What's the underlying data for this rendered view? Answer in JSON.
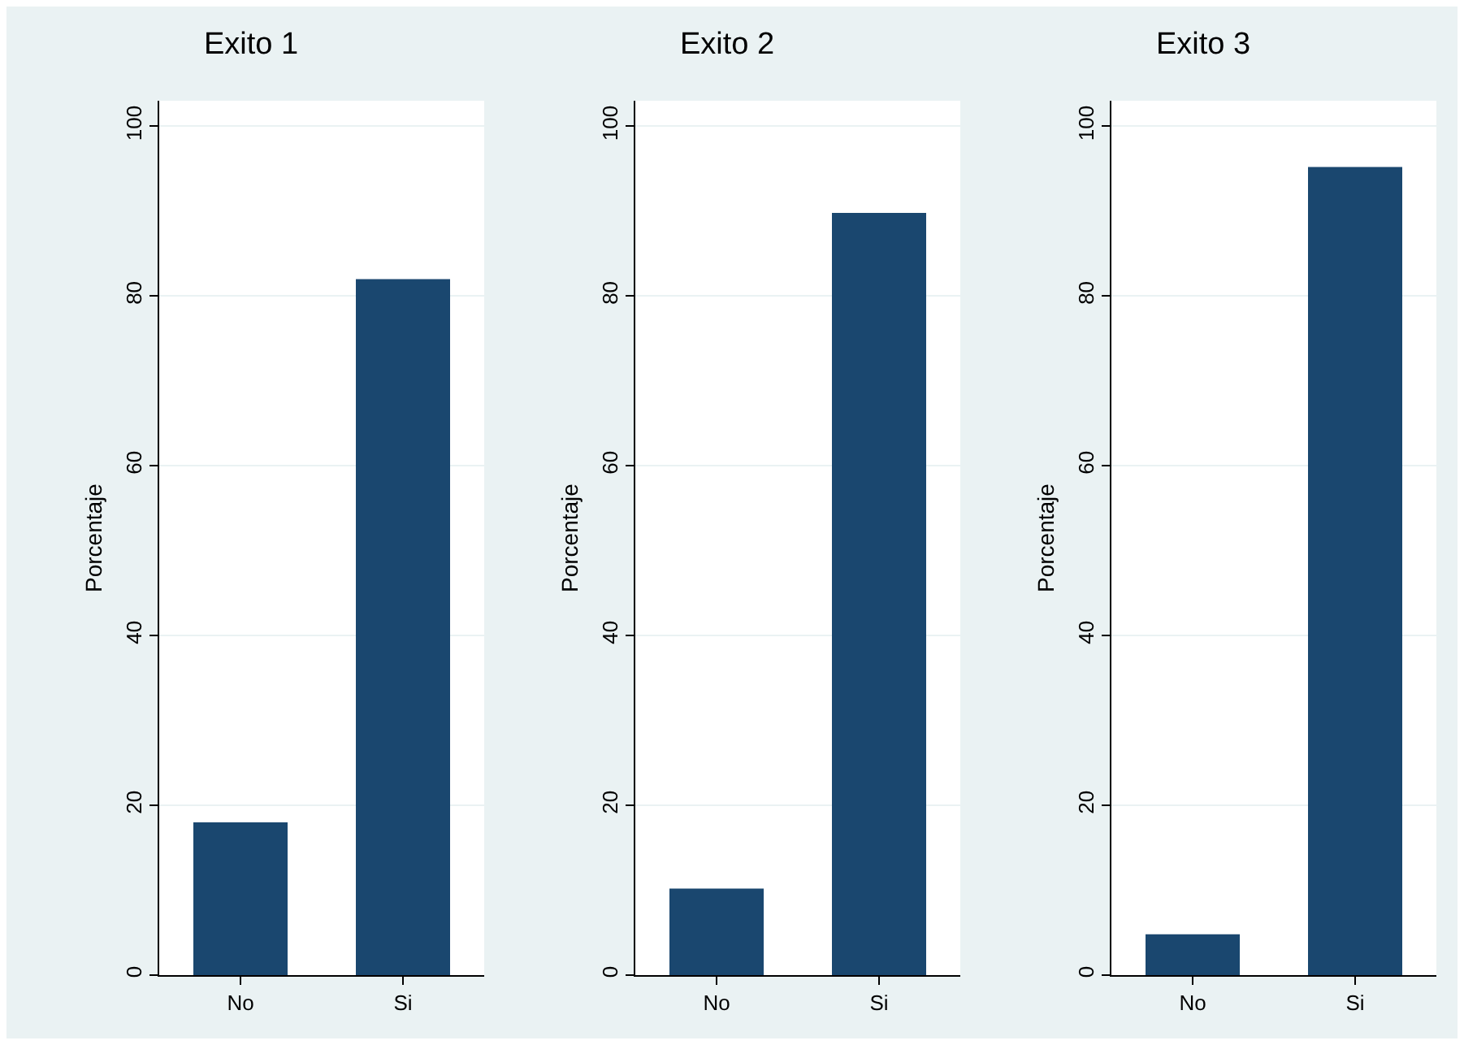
{
  "chart_data": [
    {
      "type": "bar",
      "title": "Exito 1",
      "ylabel": "Porcentaje",
      "categories": [
        "No",
        "Si"
      ],
      "values": [
        18,
        82
      ],
      "color": "#1a476f",
      "ylim": [
        0,
        103
      ],
      "yticks": [
        0,
        20,
        40,
        60,
        80,
        100
      ],
      "grid": "y"
    },
    {
      "type": "bar",
      "title": "Exito 2",
      "ylabel": "Porcentaje",
      "categories": [
        "No",
        "Si"
      ],
      "values": [
        10.2,
        89.8
      ],
      "color": "#1a476f",
      "ylim": [
        0,
        103
      ],
      "yticks": [
        0,
        20,
        40,
        60,
        80,
        100
      ],
      "grid": "y"
    },
    {
      "type": "bar",
      "title": "Exito 3",
      "ylabel": "Porcentaje",
      "categories": [
        "No",
        "Si"
      ],
      "values": [
        4.8,
        95.2
      ],
      "color": "#1a476f",
      "ylim": [
        0,
        103
      ],
      "yticks": [
        0,
        20,
        40,
        60,
        80,
        100
      ],
      "grid": "y"
    }
  ]
}
